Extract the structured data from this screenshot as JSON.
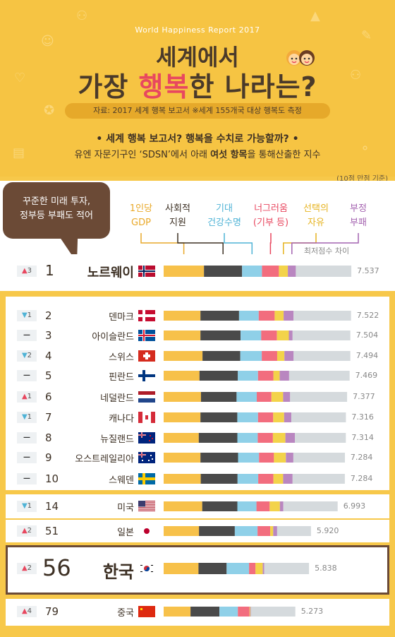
{
  "header": {
    "report_name": "World Happiness Report 2017",
    "title_line1": "세계에서",
    "title_line2_a": "가장 ",
    "title_line2_b": "행복",
    "title_line2_c": "한 나라는?",
    "source": "자료: 2017 세계 행복 보고서 ※세계 155개국 대상 행복도 측정",
    "question": "•  세계 행복 보고서? 행복을 수치로 가능할까?  •",
    "desc_a": "유엔 자문기구인 ‘SDSN’에서 아래 ",
    "desc_b": "여섯 항목",
    "desc_c": "을 통해산출한 지수",
    "scale_note": "(10점 만점 기준)"
  },
  "speech": {
    "line1": "꾸준한 미래 투자,",
    "line2": "정부등 부패도 적어"
  },
  "legend": {
    "items": [
      {
        "label1": "1인당",
        "label2": "GDP",
        "color": "#f7c14a"
      },
      {
        "label1": "사회적",
        "label2": "지원",
        "color": "#4a4a4a"
      },
      {
        "label1": "기대",
        "label2": "건강수명",
        "color": "#8fd0e8"
      },
      {
        "label1": "너그러움",
        "label2": "(기부 등)",
        "color": "#f26d7e"
      },
      {
        "label1": "선택의",
        "label2": "자유",
        "color": "#f3d34a"
      },
      {
        "label1": "부정",
        "label2": "부패",
        "color": "#b986c0"
      }
    ],
    "residual_label": "최저점수 차이",
    "residual_color": "#d5dadd"
  },
  "chart_data": {
    "type": "bar",
    "orientation": "horizontal-stacked",
    "title": "세계에서 가장 행복한 나라는?",
    "segments": [
      "1인당 GDP",
      "사회적 지원",
      "기대 건강수명",
      "너그러움 (기부 등)",
      "선택의 자유",
      "부정 부패",
      "최저점수 차이"
    ],
    "rows": [
      {
        "change": "up",
        "change_by": "3",
        "rank": "1",
        "country": "노르웨이",
        "score": "7.537",
        "value": 7.537,
        "parts": [
          1.62,
          1.53,
          0.8,
          0.68,
          0.36,
          0.32,
          2.23
        ]
      },
      {
        "change": "down",
        "change_by": "1",
        "rank": "2",
        "country": "덴마크",
        "score": "7.522",
        "value": 7.522,
        "parts": [
          1.48,
          1.55,
          0.79,
          0.64,
          0.36,
          0.4,
          2.31
        ]
      },
      {
        "change": "same",
        "change_by": "",
        "rank": "3",
        "country": "아이슬란드",
        "score": "7.504",
        "value": 7.504,
        "parts": [
          1.48,
          1.61,
          0.83,
          0.63,
          0.48,
          0.15,
          2.32
        ]
      },
      {
        "change": "down",
        "change_by": "2",
        "rank": "4",
        "country": "스위스",
        "score": "7.494",
        "value": 7.494,
        "parts": [
          1.56,
          1.52,
          0.86,
          0.62,
          0.29,
          0.37,
          2.28
        ]
      },
      {
        "change": "same",
        "change_by": "",
        "rank": "5",
        "country": "핀란드",
        "score": "7.469",
        "value": 7.469,
        "parts": [
          1.44,
          1.54,
          0.81,
          0.62,
          0.25,
          0.38,
          2.43
        ]
      },
      {
        "change": "up",
        "change_by": "1",
        "rank": "6",
        "country": "네덜란드",
        "score": "7.377",
        "value": 7.377,
        "parts": [
          1.5,
          1.43,
          0.81,
          0.59,
          0.47,
          0.28,
          2.29
        ]
      },
      {
        "change": "down",
        "change_by": "1",
        "rank": "7",
        "country": "캐나다",
        "score": "7.316",
        "value": 7.316,
        "parts": [
          1.48,
          1.48,
          0.83,
          0.61,
          0.44,
          0.29,
          2.19
        ]
      },
      {
        "change": "same",
        "change_by": "",
        "rank": "8",
        "country": "뉴질랜드",
        "score": "7.314",
        "value": 7.314,
        "parts": [
          1.41,
          1.55,
          0.82,
          0.61,
          0.5,
          0.38,
          2.05
        ]
      },
      {
        "change": "same",
        "change_by": "",
        "rank": "9",
        "country": "오스트레일리아",
        "score": "7.284",
        "value": 7.284,
        "parts": [
          1.48,
          1.51,
          0.84,
          0.6,
          0.48,
          0.3,
          2.07
        ]
      },
      {
        "change": "same",
        "change_by": "",
        "rank": "10",
        "country": "스웨덴",
        "score": "7.284",
        "value": 7.284,
        "parts": [
          1.49,
          1.48,
          0.83,
          0.61,
          0.39,
          0.38,
          2.1
        ]
      },
      {
        "change": "down",
        "change_by": "1",
        "rank": "14",
        "country": "미국",
        "score": "6.993",
        "value": 6.993,
        "parts": [
          1.55,
          1.41,
          0.77,
          0.53,
          0.41,
          0.14,
          2.18
        ]
      },
      {
        "change": "up",
        "change_by": "2",
        "rank": "51",
        "country": "일본",
        "score": "5.920",
        "value": 5.92,
        "parts": [
          1.42,
          1.44,
          0.91,
          0.51,
          0.12,
          0.16,
          1.36
        ]
      },
      {
        "change": "up",
        "change_by": "2",
        "rank": "56",
        "country": "한국",
        "score": "5.838",
        "value": 5.838,
        "parts": [
          1.4,
          1.13,
          0.9,
          0.26,
          0.29,
          0.06,
          1.8
        ]
      },
      {
        "change": "up",
        "change_by": "4",
        "rank": "79",
        "country": "중국",
        "score": "5.273",
        "value": 5.273,
        "parts": [
          1.08,
          1.16,
          0.74,
          0.47,
          0.03,
          0.02,
          1.79
        ]
      }
    ]
  }
}
